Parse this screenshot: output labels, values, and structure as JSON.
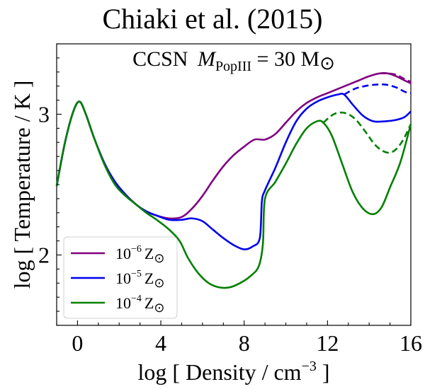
{
  "chart_data": {
    "type": "line",
    "title": "Chiaki et al. (2015)",
    "annotation": {
      "prefix": "CCSN",
      "var": "M",
      "sub": "PopIII",
      "rest": " = 30 M",
      "sun": "⊙"
    },
    "xlabel": {
      "main": "log [ Density / cm",
      "sup": "−3",
      "end": " ]"
    },
    "ylabel": "log [ Temperature / K ]",
    "xlim": [
      -1,
      16
    ],
    "ylim": [
      1.5,
      3.5
    ],
    "xticks": [
      "0",
      "4",
      "8",
      "12",
      "16"
    ],
    "xtick_values": [
      0,
      4,
      8,
      12,
      16
    ],
    "yticks": [
      "2",
      "3"
    ],
    "ytick_values": [
      2,
      3
    ],
    "legend_position": "lower-left",
    "series": [
      {
        "name": "10^-6 Z_sun",
        "label_base": "10",
        "label_exp": "−6",
        "label_unit": "Z",
        "color": "#800080",
        "style": "solid",
        "points": [
          [
            -1,
            2.49
          ],
          [
            -0.6,
            2.8
          ],
          [
            -0.2,
            3.02
          ],
          [
            0.1,
            3.09
          ],
          [
            0.4,
            3.0
          ],
          [
            0.8,
            2.83
          ],
          [
            1.3,
            2.65
          ],
          [
            1.8,
            2.52
          ],
          [
            2.3,
            2.43
          ],
          [
            2.8,
            2.36
          ],
          [
            3.3,
            2.31
          ],
          [
            3.8,
            2.28
          ],
          [
            4.4,
            2.26
          ],
          [
            5.0,
            2.27
          ],
          [
            5.5,
            2.33
          ],
          [
            6.0,
            2.42
          ],
          [
            6.5,
            2.53
          ],
          [
            7.0,
            2.63
          ],
          [
            7.5,
            2.71
          ],
          [
            8.0,
            2.77
          ],
          [
            8.5,
            2.82
          ],
          [
            9.0,
            2.82
          ],
          [
            9.5,
            2.86
          ],
          [
            10.0,
            2.94
          ],
          [
            10.5,
            3.02
          ],
          [
            11.0,
            3.08
          ],
          [
            11.5,
            3.12
          ],
          [
            12.0,
            3.15
          ],
          [
            12.5,
            3.18
          ],
          [
            13.0,
            3.21
          ],
          [
            13.5,
            3.24
          ],
          [
            14.0,
            3.27
          ],
          [
            14.5,
            3.29
          ],
          [
            14.9,
            3.29
          ],
          [
            15.3,
            3.27
          ],
          [
            15.7,
            3.24
          ],
          [
            16.0,
            3.22
          ]
        ]
      },
      {
        "name": "10^-6 Z_sun (dashed)",
        "color": "#800080",
        "style": "dashed",
        "points": [
          [
            14.5,
            3.29
          ],
          [
            14.9,
            3.29
          ],
          [
            15.3,
            3.28
          ],
          [
            15.7,
            3.25
          ],
          [
            16.0,
            3.23
          ]
        ]
      },
      {
        "name": "10^-5 Z_sun",
        "label_base": "10",
        "label_exp": "−5",
        "label_unit": "Z",
        "color": "#0000ee",
        "style": "solid",
        "points": [
          [
            -1,
            2.49
          ],
          [
            -0.6,
            2.8
          ],
          [
            -0.2,
            3.02
          ],
          [
            0.1,
            3.09
          ],
          [
            0.4,
            3.0
          ],
          [
            0.8,
            2.83
          ],
          [
            1.3,
            2.65
          ],
          [
            1.8,
            2.52
          ],
          [
            2.3,
            2.43
          ],
          [
            2.8,
            2.36
          ],
          [
            3.3,
            2.31
          ],
          [
            3.8,
            2.28
          ],
          [
            4.4,
            2.25
          ],
          [
            5.0,
            2.25
          ],
          [
            5.5,
            2.26
          ],
          [
            6.0,
            2.24
          ],
          [
            6.5,
            2.18
          ],
          [
            7.0,
            2.12
          ],
          [
            7.5,
            2.07
          ],
          [
            8.0,
            2.04
          ],
          [
            8.4,
            2.06
          ],
          [
            8.75,
            2.12
          ],
          [
            8.85,
            2.38
          ],
          [
            9.0,
            2.46
          ],
          [
            9.5,
            2.62
          ],
          [
            10.0,
            2.8
          ],
          [
            10.5,
            2.95
          ],
          [
            11.0,
            3.04
          ],
          [
            11.5,
            3.09
          ],
          [
            12.0,
            3.12
          ],
          [
            12.5,
            3.14
          ],
          [
            12.8,
            3.14
          ],
          [
            13.2,
            3.07
          ],
          [
            13.7,
            2.99
          ],
          [
            14.2,
            2.95
          ],
          [
            14.8,
            2.95
          ],
          [
            15.3,
            2.96
          ],
          [
            15.7,
            2.98
          ],
          [
            16.0,
            3.02
          ]
        ]
      },
      {
        "name": "10^-5 Z_sun (dashed)",
        "color": "#0000ee",
        "style": "dashed",
        "points": [
          [
            12.8,
            3.14
          ],
          [
            13.3,
            3.18
          ],
          [
            13.8,
            3.2
          ],
          [
            14.3,
            3.21
          ],
          [
            14.8,
            3.21
          ],
          [
            15.3,
            3.19
          ],
          [
            15.7,
            3.16
          ],
          [
            16.0,
            3.15
          ]
        ]
      },
      {
        "name": "10^-4 Z_sun",
        "label_base": "10",
        "label_exp": "−4",
        "label_unit": "Z",
        "color": "#008000",
        "style": "solid",
        "points": [
          [
            -1,
            2.49
          ],
          [
            -0.6,
            2.8
          ],
          [
            -0.2,
            3.02
          ],
          [
            0.1,
            3.09
          ],
          [
            0.4,
            3.0
          ],
          [
            0.8,
            2.83
          ],
          [
            1.3,
            2.64
          ],
          [
            1.8,
            2.5
          ],
          [
            2.3,
            2.42
          ],
          [
            2.8,
            2.36
          ],
          [
            3.3,
            2.3
          ],
          [
            3.8,
            2.25
          ],
          [
            4.4,
            2.18
          ],
          [
            4.9,
            2.1
          ],
          [
            5.3,
            1.98
          ],
          [
            5.8,
            1.87
          ],
          [
            6.3,
            1.8
          ],
          [
            6.8,
            1.77
          ],
          [
            7.3,
            1.77
          ],
          [
            7.8,
            1.8
          ],
          [
            8.3,
            1.85
          ],
          [
            8.7,
            1.92
          ],
          [
            8.9,
            2.08
          ],
          [
            9.0,
            2.4
          ],
          [
            9.5,
            2.52
          ],
          [
            10.0,
            2.65
          ],
          [
            10.5,
            2.79
          ],
          [
            11.0,
            2.9
          ],
          [
            11.5,
            2.95
          ],
          [
            11.8,
            2.94
          ],
          [
            12.2,
            2.85
          ],
          [
            12.7,
            2.65
          ],
          [
            13.2,
            2.45
          ],
          [
            13.7,
            2.33
          ],
          [
            14.2,
            2.29
          ],
          [
            14.6,
            2.34
          ],
          [
            15.0,
            2.48
          ],
          [
            15.5,
            2.66
          ],
          [
            16.0,
            2.93
          ]
        ]
      },
      {
        "name": "10^-4 Z_sun (dashed)",
        "color": "#008000",
        "style": "dashed",
        "points": [
          [
            11.8,
            2.94
          ],
          [
            12.3,
            3.0
          ],
          [
            12.8,
            3.01
          ],
          [
            13.3,
            2.97
          ],
          [
            13.8,
            2.88
          ],
          [
            14.3,
            2.78
          ],
          [
            14.8,
            2.73
          ],
          [
            15.2,
            2.74
          ],
          [
            15.6,
            2.81
          ],
          [
            16.0,
            2.93
          ]
        ]
      }
    ]
  }
}
